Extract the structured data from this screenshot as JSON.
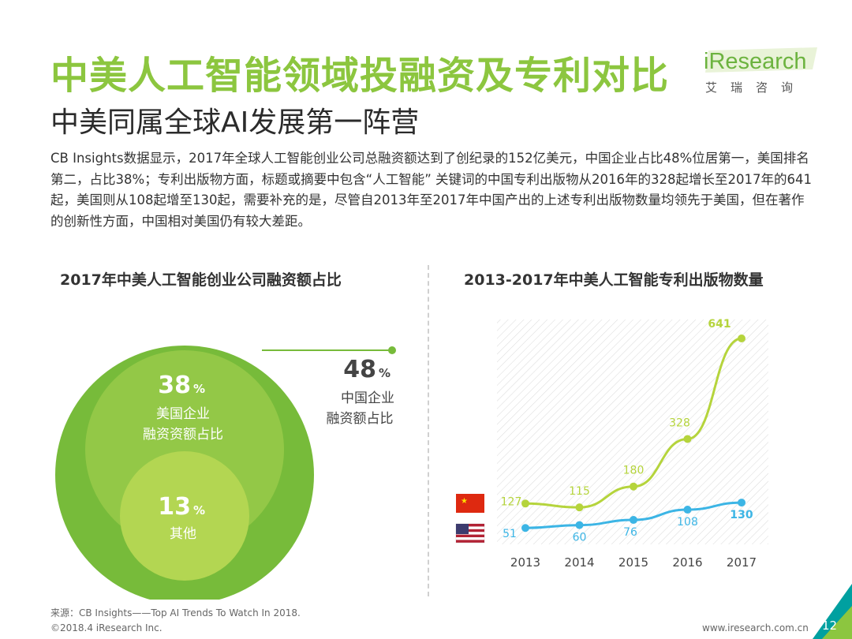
{
  "header": {
    "title": "中美人工智能领域投融资及专利对比",
    "subtitle": "中美同属全球AI发展第一阵营",
    "logo_brand": "iResearch",
    "logo_sub": "艾瑞咨询"
  },
  "description": "CB Insights数据显示，2017年全球人工智能创业公司总融资额达到了创纪录的152亿美元，中国企业占比48%位居第一，美国排名第二，占比38%；专利出版物方面，标题或摘要中包含“人工智能” 关键词的中国专利出版物从2016年的328起增长至2017年的641起，美国则从108起增至130起，需要补充的是，尽管自2013年至2017年中国产出的上述专利出版物数量均领先于美国，但在著作的创新性方面，中国相对美国仍有较大差距。",
  "colors": {
    "green": "#8cc63f",
    "china_line": "#b5d43c",
    "us_line": "#3cb5e5",
    "bubble_outer": "#77bb3a",
    "bubble_mid": "#93c847",
    "bubble_inner": "#b3d652"
  },
  "chart_data": [
    {
      "type": "pie",
      "title": "2017年中美人工智能创业公司融资额占比",
      "display": "nested-circles",
      "slices": [
        {
          "label_line1": "中国企业",
          "label_line2": "融资额占比",
          "number": "48",
          "unit": "%",
          "value": 48
        },
        {
          "label_line1": "美国企业",
          "label_line2": "融资资额占比",
          "number": "38",
          "unit": "%",
          "value": 38
        },
        {
          "label_line1": "其他",
          "label_line2": "",
          "number": "13",
          "unit": "%",
          "value": 13
        }
      ]
    },
    {
      "type": "line",
      "title": "2013-2017年中美人工智能专利出版物数量",
      "categories": [
        "2013",
        "2014",
        "2015",
        "2016",
        "2017"
      ],
      "ylim": [
        0,
        700
      ],
      "grid": "diagonal-hatch",
      "series": [
        {
          "name": "中国",
          "icon": "china-flag-icon",
          "values": [
            127,
            115,
            180,
            328,
            641
          ]
        },
        {
          "name": "美国",
          "icon": "usa-flag-icon",
          "values": [
            51,
            60,
            76,
            108,
            130
          ]
        }
      ]
    }
  ],
  "footer": {
    "source": "来源：CB Insights——Top AI Trends To Watch In 2018.",
    "copyright": "©2018.4 iResearch Inc.",
    "site": "www.iresearch.com.cn",
    "page": "12"
  }
}
